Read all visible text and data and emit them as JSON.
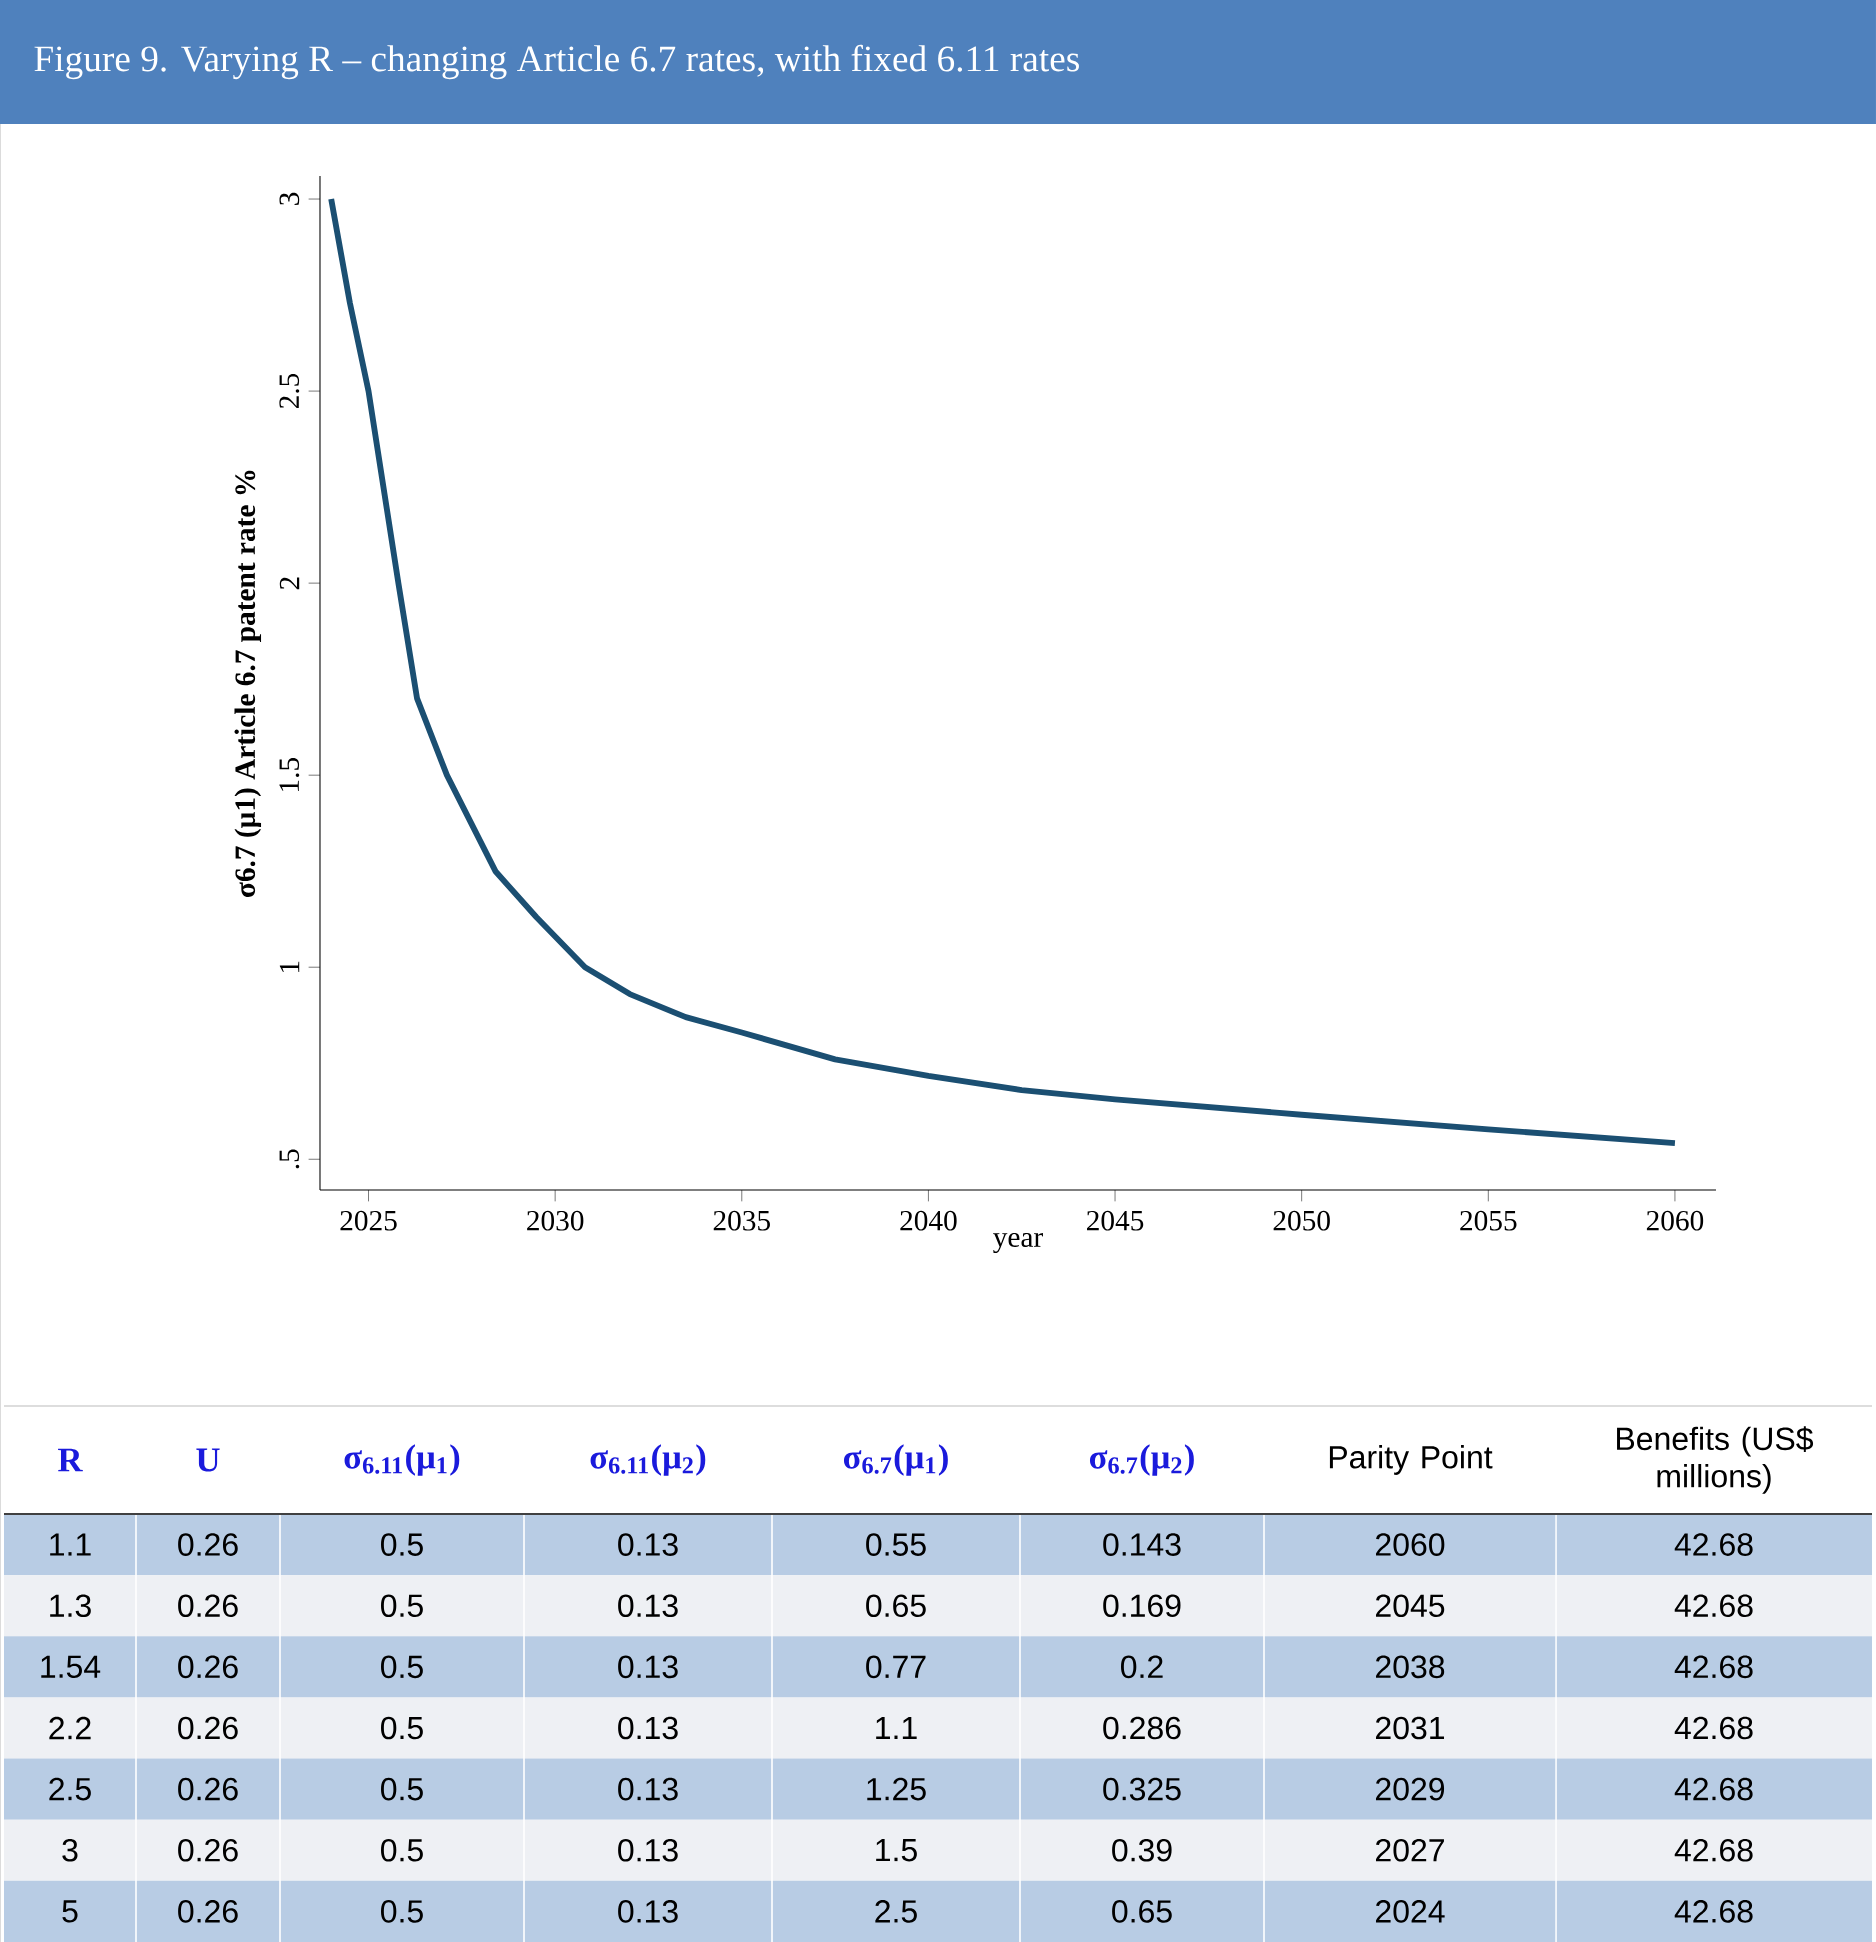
{
  "chart_data": [
    {
      "type": "line",
      "title": "Figure 9. Varying R – changing Article 6.7 rates, with fixed 6.11 rates",
      "xlabel": "year",
      "ylabel": "σ6.7 (μ1)  Article 6.7 patent rate %",
      "x": [
        2024,
        2024.5,
        2025,
        2025.8,
        2026.3,
        2027.1,
        2028.4,
        2029.5,
        2030.8,
        2032,
        2033.5,
        2035,
        2037.5,
        2040,
        2042.5,
        2045,
        2050,
        2055,
        2060
      ],
      "series": [
        {
          "color": "#1b4f72",
          "values": [
            3.0,
            2.73,
            2.5,
            2.0,
            1.7,
            1.5,
            1.25,
            1.13,
            1.0,
            0.93,
            0.87,
            0.83,
            0.76,
            0.717,
            0.68,
            0.656,
            0.616,
            0.578,
            0.542
          ]
        }
      ],
      "xlim": [
        2023.7,
        2061.1
      ],
      "ylim": [
        0.42,
        3.06
      ],
      "xticks": [
        2025,
        2030,
        2035,
        2040,
        2045,
        2050,
        2055,
        2060
      ],
      "yticks": [
        {
          "value": 0.5,
          "label": ".5"
        },
        1,
        1.5,
        2,
        2.5,
        3
      ]
    },
    {
      "type": "other",
      "annotations": [
        "R",
        "U",
        "σ$_{6.11}$(μ$_{1}$)",
        "σ$_{6.11}$(μ$_{2}$)",
        "σ$_{6.7}$(μ$_{1}$)",
        "σ$_{6.7}$(μ$_{2}$)",
        "Parity Point",
        "Benefits (US$ millions)",
        "1.1",
        "0.26",
        "0.5",
        "0.13",
        "0.55",
        "0.143",
        "2060",
        "42.68",
        "1.3",
        "0.26",
        "0.5",
        "0.13",
        "0.65",
        "0.169",
        "2045",
        "42.68",
        "1.54",
        "0.26",
        "0.5",
        "0.13",
        "0.77",
        "0.2",
        "2038",
        "42.68",
        "2.2",
        "0.26",
        "0.5",
        "0.13",
        "1.1",
        "0.286",
        "2031",
        "42.68",
        "2.5",
        "0.26",
        "0.5",
        "0.13",
        "1.25",
        "0.325",
        "2029",
        "42.68",
        "3",
        "0.26",
        "0.5",
        "0.13",
        "1.5",
        "0.39",
        "2027",
        "42.68",
        "5",
        "0.26",
        "0.5",
        "0.13",
        "2.5",
        "0.65",
        "2024",
        "42.68"
      ]
    }
  ]
}
